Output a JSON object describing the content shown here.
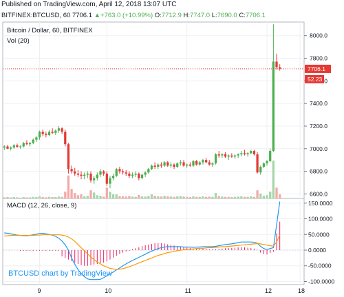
{
  "header": {
    "published": "Published on TradingView.com, April 12, 2018 13:07 UTC",
    "symbol": "BITFINEX:BTCUSD, 60",
    "last": "7706.1",
    "change": "+763.0 (+10.99%)",
    "arrow": "▲",
    "o_label": "O:",
    "o_value": "7712.9",
    "h_label": "H:",
    "h_value": "7747.0",
    "l_label": "L:",
    "l_value": "7690.0",
    "c_label": "C:",
    "c_value": "7706.1"
  },
  "main_pane": {
    "title": "Bitcoin / Dollar, 60, BITFINEX",
    "volume_label": "Vol (20)",
    "price_badge": "7706.1",
    "volume_badge": "52.23"
  },
  "macd_pane": {
    "title": "MACD (12, 26, close, 9)",
    "watermark": "BTCUSD chart by TradingView"
  },
  "chart_data": [
    {
      "type": "candlestick",
      "title": "Bitcoin / Dollar, 60, BITFINEX",
      "y_ticks": [
        "8000.0",
        "7800.0",
        "7600.0",
        "7400.0",
        "7200.0",
        "7000.0",
        "6800.0",
        "6600.0"
      ],
      "ylim": [
        6560,
        8120
      ],
      "x_ticks": [
        "9",
        "10",
        "11",
        "12",
        "18"
      ],
      "last_price": 7706.1,
      "colors": {
        "up": "#4caf50",
        "down": "#e53935",
        "volume_up": "#a5d6a7",
        "volume_down": "#f4a9a6"
      },
      "candles": [
        [
          7010,
          7030,
          6990,
          7020
        ],
        [
          7020,
          7035,
          6995,
          7000
        ],
        [
          7000,
          7020,
          6985,
          7010
        ],
        [
          7010,
          7040,
          7000,
          7030
        ],
        [
          7030,
          7045,
          7010,
          7015
        ],
        [
          7015,
          7030,
          7000,
          7020
        ],
        [
          7020,
          7060,
          7010,
          7050
        ],
        [
          7050,
          7075,
          7030,
          7040
        ],
        [
          7040,
          7060,
          7020,
          7050
        ],
        [
          7050,
          7090,
          7040,
          7080
        ],
        [
          7080,
          7110,
          7060,
          7100
        ],
        [
          7100,
          7160,
          7080,
          7150
        ],
        [
          7150,
          7170,
          7110,
          7130
        ],
        [
          7130,
          7150,
          7100,
          7120
        ],
        [
          7120,
          7165,
          7110,
          7150
        ],
        [
          7150,
          7180,
          7130,
          7140
        ],
        [
          7140,
          7170,
          7120,
          7160
        ],
        [
          7160,
          7200,
          7140,
          7180
        ],
        [
          7180,
          7190,
          7130,
          7150
        ],
        [
          7150,
          7170,
          7020,
          7040
        ],
        [
          7040,
          7050,
          6780,
          6820
        ],
        [
          6820,
          6850,
          6780,
          6800
        ],
        [
          6800,
          6830,
          6760,
          6780
        ],
        [
          6780,
          6810,
          6750,
          6770
        ],
        [
          6770,
          6800,
          6730,
          6760
        ],
        [
          6760,
          6790,
          6730,
          6770
        ],
        [
          6770,
          6800,
          6740,
          6780
        ],
        [
          6780,
          6800,
          6700,
          6720
        ],
        [
          6720,
          6760,
          6690,
          6740
        ],
        [
          6740,
          6790,
          6720,
          6770
        ],
        [
          6770,
          6820,
          6750,
          6800
        ],
        [
          6800,
          6810,
          6760,
          6780
        ],
        [
          6780,
          6800,
          6670,
          6690
        ],
        [
          6690,
          6760,
          6650,
          6740
        ],
        [
          6740,
          6780,
          6720,
          6760
        ],
        [
          6760,
          6830,
          6750,
          6820
        ],
        [
          6820,
          6840,
          6780,
          6800
        ],
        [
          6800,
          6820,
          6770,
          6790
        ],
        [
          6790,
          6810,
          6760,
          6780
        ],
        [
          6780,
          6800,
          6740,
          6760
        ],
        [
          6760,
          6790,
          6740,
          6770
        ],
        [
          6770,
          6800,
          6750,
          6780
        ],
        [
          6780,
          6790,
          6720,
          6740
        ],
        [
          6740,
          6780,
          6730,
          6770
        ],
        [
          6770,
          6800,
          6750,
          6790
        ],
        [
          6790,
          6830,
          6780,
          6820
        ],
        [
          6820,
          6860,
          6810,
          6850
        ],
        [
          6850,
          6880,
          6820,
          6840
        ],
        [
          6840,
          6870,
          6820,
          6860
        ],
        [
          6860,
          6880,
          6830,
          6850
        ],
        [
          6850,
          6890,
          6840,
          6880
        ],
        [
          6880,
          6890,
          6840,
          6850
        ],
        [
          6850,
          6880,
          6830,
          6860
        ],
        [
          6860,
          6870,
          6820,
          6840
        ],
        [
          6840,
          6880,
          6830,
          6870
        ],
        [
          6870,
          6900,
          6850,
          6880
        ],
        [
          6880,
          6900,
          6840,
          6850
        ],
        [
          6850,
          6870,
          6830,
          6860
        ],
        [
          6860,
          6880,
          6840,
          6850
        ],
        [
          6850,
          6900,
          6840,
          6890
        ],
        [
          6890,
          6900,
          6850,
          6860
        ],
        [
          6860,
          6890,
          6850,
          6880
        ],
        [
          6880,
          6910,
          6860,
          6900
        ],
        [
          6900,
          6920,
          6870,
          6880
        ],
        [
          6880,
          6900,
          6850,
          6860
        ],
        [
          6860,
          6880,
          6840,
          6870
        ],
        [
          6870,
          6960,
          6860,
          6950
        ],
        [
          6950,
          6980,
          6920,
          6940
        ],
        [
          6940,
          6960,
          6920,
          6950
        ],
        [
          6950,
          6970,
          6920,
          6930
        ],
        [
          6930,
          6950,
          6900,
          6940
        ],
        [
          6940,
          6960,
          6920,
          6930
        ],
        [
          6930,
          6950,
          6910,
          6940
        ],
        [
          6940,
          6960,
          6920,
          6950
        ],
        [
          6950,
          6980,
          6930,
          6960
        ],
        [
          6960,
          6990,
          6940,
          6950
        ],
        [
          6950,
          6970,
          6930,
          6960
        ],
        [
          6960,
          6990,
          6950,
          6980
        ],
        [
          6980,
          6990,
          6940,
          6950
        ],
        [
          6950,
          6970,
          6780,
          6790
        ],
        [
          6790,
          6850,
          6770,
          6840
        ],
        [
          6840,
          6880,
          6830,
          6870
        ],
        [
          6870,
          6900,
          6850,
          6890
        ],
        [
          6890,
          7000,
          6880,
          6980
        ],
        [
          6980,
          8100,
          6970,
          7770
        ],
        [
          7770,
          7840,
          7700,
          7720
        ],
        [
          7720,
          7747,
          7690,
          7706.1
        ]
      ],
      "volumes": [
        [
          0.4,
          1
        ],
        [
          0.5,
          0
        ],
        [
          0.4,
          1
        ],
        [
          0.5,
          1
        ],
        [
          0.4,
          0
        ],
        [
          0.3,
          1
        ],
        [
          0.5,
          1
        ],
        [
          0.4,
          0
        ],
        [
          0.4,
          1
        ],
        [
          0.6,
          1
        ],
        [
          0.5,
          1
        ],
        [
          0.8,
          1
        ],
        [
          0.5,
          0
        ],
        [
          0.4,
          0
        ],
        [
          0.6,
          1
        ],
        [
          0.5,
          0
        ],
        [
          0.5,
          1
        ],
        [
          0.7,
          1
        ],
        [
          0.6,
          0
        ],
        [
          2.5,
          0
        ],
        [
          8.5,
          0
        ],
        [
          3.5,
          0
        ],
        [
          2.0,
          0
        ],
        [
          1.2,
          0
        ],
        [
          1.5,
          0
        ],
        [
          0.8,
          1
        ],
        [
          1.0,
          1
        ],
        [
          3.0,
          0
        ],
        [
          2.2,
          1
        ],
        [
          1.2,
          1
        ],
        [
          1.0,
          1
        ],
        [
          0.7,
          0
        ],
        [
          4.0,
          0
        ],
        [
          2.5,
          1
        ],
        [
          1.5,
          1
        ],
        [
          1.5,
          1
        ],
        [
          0.9,
          0
        ],
        [
          0.8,
          0
        ],
        [
          0.7,
          0
        ],
        [
          0.9,
          0
        ],
        [
          0.7,
          1
        ],
        [
          0.6,
          1
        ],
        [
          1.3,
          0
        ],
        [
          0.8,
          1
        ],
        [
          0.7,
          1
        ],
        [
          0.9,
          1
        ],
        [
          1.5,
          1
        ],
        [
          1.0,
          0
        ],
        [
          0.8,
          1
        ],
        [
          0.7,
          0
        ],
        [
          1.0,
          1
        ],
        [
          0.8,
          0
        ],
        [
          0.7,
          1
        ],
        [
          0.6,
          0
        ],
        [
          0.8,
          1
        ],
        [
          0.9,
          1
        ],
        [
          0.7,
          0
        ],
        [
          0.6,
          1
        ],
        [
          0.5,
          0
        ],
        [
          0.8,
          1
        ],
        [
          0.6,
          0
        ],
        [
          0.6,
          1
        ],
        [
          0.8,
          1
        ],
        [
          0.6,
          0
        ],
        [
          0.7,
          0
        ],
        [
          0.6,
          1
        ],
        [
          2.0,
          1
        ],
        [
          0.9,
          0
        ],
        [
          0.7,
          1
        ],
        [
          0.6,
          0
        ],
        [
          0.6,
          1
        ],
        [
          0.5,
          0
        ],
        [
          0.6,
          1
        ],
        [
          0.7,
          1
        ],
        [
          0.8,
          1
        ],
        [
          0.6,
          0
        ],
        [
          0.6,
          1
        ],
        [
          0.8,
          1
        ],
        [
          0.6,
          0
        ],
        [
          3.0,
          0
        ],
        [
          1.8,
          1
        ],
        [
          1.0,
          1
        ],
        [
          1.2,
          1
        ],
        [
          2.5,
          1
        ],
        [
          14.0,
          1
        ],
        [
          4.0,
          0
        ],
        [
          1.5,
          0
        ]
      ]
    },
    {
      "type": "line",
      "title": "MACD (12, 26, close, 9)",
      "y_ticks": [
        "150.0000",
        "100.0000",
        "50.0000",
        "0.0000",
        "-50.0000",
        "-100.0000"
      ],
      "ylim": [
        -110,
        165
      ],
      "colors": {
        "macd": "#2196f3",
        "signal": "#ff9800",
        "histogram": "#e91e63"
      },
      "series": [
        {
          "name": "",
          "values": [
            55,
            54,
            52,
            50,
            48,
            47,
            46,
            46,
            47,
            49,
            51,
            53,
            54,
            52,
            50,
            48,
            44,
            38,
            29,
            17,
            0,
            -25,
            -45,
            -62,
            -75,
            -85,
            -92,
            -94,
            -94,
            -94,
            -93,
            -88,
            -82,
            -76,
            -70,
            -63,
            -57,
            -50,
            -44,
            -38,
            -33,
            -28,
            -23,
            -18,
            -13,
            -8,
            -3,
            1,
            5,
            8,
            10,
            11,
            11,
            11,
            11,
            11,
            10,
            10,
            10,
            9,
            10,
            10,
            11,
            11,
            11,
            11,
            12,
            14,
            16,
            18,
            19,
            20,
            22,
            24,
            26,
            26,
            26,
            26,
            25,
            22,
            12,
            5,
            2,
            5,
            8,
            80,
            155
          ]
        },
        {
          "name": "",
          "values": [
            45,
            46,
            47,
            47,
            47,
            47,
            47,
            47,
            47,
            47,
            48,
            48,
            49,
            49,
            49,
            49,
            49,
            49,
            48,
            46,
            42,
            36,
            28,
            18,
            8,
            -2,
            -12,
            -22,
            -30,
            -38,
            -44,
            -50,
            -54,
            -58,
            -60,
            -62,
            -61,
            -59,
            -56,
            -53,
            -49,
            -45,
            -41,
            -37,
            -33,
            -29,
            -25,
            -21,
            -17,
            -14,
            -11,
            -8,
            -6,
            -4,
            -2,
            0,
            1,
            2,
            3,
            4,
            5,
            6,
            6,
            7,
            8,
            8,
            9,
            10,
            11,
            11,
            12,
            13,
            14,
            15,
            16,
            17,
            18,
            19,
            20,
            21,
            20,
            18,
            16,
            14,
            13,
            26,
            48
          ]
        }
      ],
      "histogram": [
        0,
        0,
        0,
        0,
        0,
        -2,
        -2,
        -2,
        -2,
        -2,
        -2,
        -2,
        -2,
        -2,
        -2,
        -2,
        -2,
        -2,
        -20,
        -25,
        -30,
        -35,
        -40,
        -44,
        -48,
        -50,
        -50,
        -48,
        -46,
        -44,
        -42,
        -40,
        -36,
        -30,
        -24,
        -18,
        -12,
        -8,
        -4,
        -2,
        3,
        6,
        9,
        13,
        16,
        18,
        20,
        22,
        22,
        22,
        21,
        19,
        17,
        15,
        13,
        11,
        9,
        8,
        7,
        5,
        5,
        4,
        5,
        4,
        3,
        3,
        3,
        4,
        5,
        6,
        7,
        7,
        8,
        9,
        10,
        9,
        8,
        7,
        5,
        1,
        -8,
        -13,
        -14,
        -9,
        -5,
        54,
        91
      ]
    }
  ]
}
